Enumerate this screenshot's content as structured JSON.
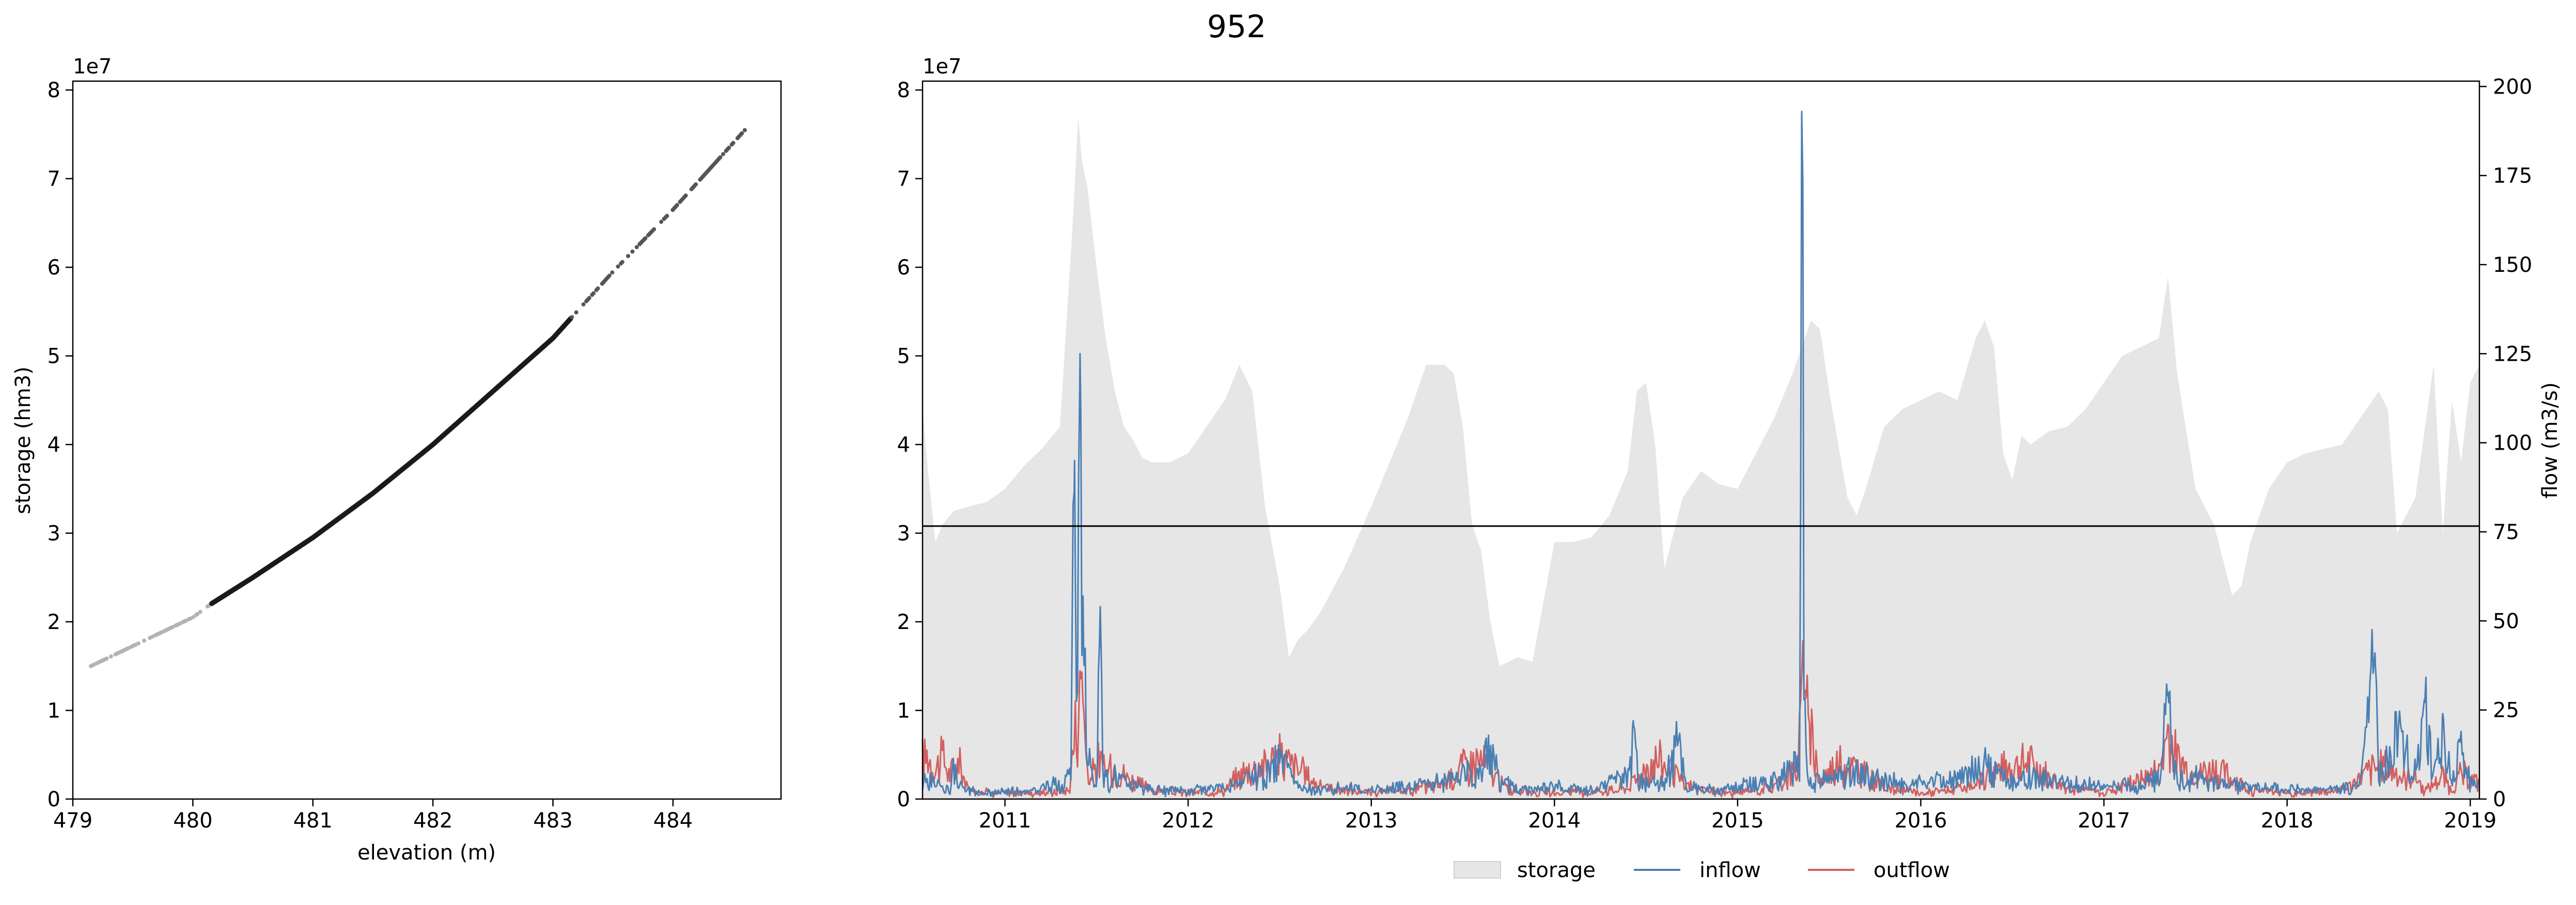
{
  "figure_title": "952",
  "colors": {
    "storage_fill": "#e6e6e6",
    "inflow": "#4a7fb3",
    "outflow": "#d35f5f",
    "curve_dark": "#1a1a1a",
    "curve_light": "#b3b3b3",
    "axis": "#000000"
  },
  "chart_data": [
    {
      "type": "scatter",
      "title": "",
      "xlabel": "elevation (m)",
      "ylabel": "storage (hm3)",
      "y_offset_label": "1e7",
      "xlim": [
        479.0,
        484.9
      ],
      "ylim": [
        0,
        8.1
      ],
      "xticks": [
        479,
        480,
        481,
        482,
        483,
        484
      ],
      "yticks": [
        0,
        1,
        2,
        3,
        4,
        5,
        6,
        7,
        8
      ],
      "curve": {
        "x": [
          479.15,
          480.0,
          480.15,
          480.5,
          481.0,
          481.5,
          482.0,
          482.5,
          483.0,
          483.5,
          484.0,
          484.6
        ],
        "y": [
          1.5,
          2.05,
          2.2,
          2.5,
          2.95,
          3.45,
          4.0,
          4.6,
          5.2,
          5.95,
          6.65,
          7.55
        ],
        "dense_range_x": [
          480.15,
          483.15
        ]
      }
    },
    {
      "type": "area+line",
      "title": "",
      "xlabel": "",
      "ylabel_left": "",
      "ylabel_right": "flow (m3/s)",
      "y_offset_label": "1e7",
      "xlim": [
        2010.55,
        2019.05
      ],
      "ylim_left": [
        0,
        8.1
      ],
      "ylim_right": [
        0,
        201.5
      ],
      "xticks": [
        2011,
        2012,
        2013,
        2014,
        2015,
        2016,
        2017,
        2018,
        2019
      ],
      "xtick_labels": [
        "2011",
        "2012",
        "2013",
        "2014",
        "2015",
        "2016",
        "2017",
        "2018",
        "2019"
      ],
      "yticks_left": [
        0,
        1,
        2,
        3,
        4,
        5,
        6,
        7,
        8
      ],
      "yticks_right": [
        0,
        25,
        50,
        75,
        100,
        125,
        150,
        175,
        200
      ],
      "reference_line_storage": 3.08,
      "legend": {
        "position": "bottom-center",
        "entries": [
          "storage",
          "inflow",
          "outflow"
        ]
      },
      "series": [
        {
          "name": "storage",
          "axis": "left",
          "x": [
            2010.55,
            2010.58,
            2010.62,
            2010.66,
            2010.72,
            2010.8,
            2010.9,
            2011.0,
            2011.1,
            2011.2,
            2011.3,
            2011.37,
            2011.4,
            2011.42,
            2011.45,
            2011.5,
            2011.55,
            2011.6,
            2011.65,
            2011.7,
            2011.75,
            2011.8,
            2011.9,
            2012.0,
            2012.1,
            2012.2,
            2012.28,
            2012.35,
            2012.42,
            2012.5,
            2012.55,
            2012.6,
            2012.65,
            2012.72,
            2012.85,
            2013.0,
            2013.1,
            2013.2,
            2013.3,
            2013.4,
            2013.45,
            2013.5,
            2013.55,
            2013.6,
            2013.65,
            2013.7,
            2013.8,
            2013.88,
            2014.0,
            2014.1,
            2014.2,
            2014.3,
            2014.4,
            2014.45,
            2014.5,
            2014.55,
            2014.6,
            2014.7,
            2014.8,
            2014.9,
            2015.0,
            2015.1,
            2015.2,
            2015.3,
            2015.35,
            2015.4,
            2015.45,
            2015.5,
            2015.6,
            2015.65,
            2015.7,
            2015.8,
            2015.9,
            2016.0,
            2016.1,
            2016.2,
            2016.3,
            2016.35,
            2016.4,
            2016.45,
            2016.5,
            2016.55,
            2016.6,
            2016.7,
            2016.8,
            2016.9,
            2017.0,
            2017.1,
            2017.2,
            2017.3,
            2017.35,
            2017.4,
            2017.5,
            2017.6,
            2017.7,
            2017.75,
            2017.8,
            2017.9,
            2018.0,
            2018.1,
            2018.2,
            2018.3,
            2018.4,
            2018.5,
            2018.55,
            2018.6,
            2018.7,
            2018.8,
            2018.85,
            2018.9,
            2018.95,
            2019.0,
            2019.05
          ],
          "values": [
            4.4,
            3.7,
            2.9,
            3.1,
            3.25,
            3.3,
            3.35,
            3.5,
            3.75,
            3.95,
            4.2,
            6.5,
            7.7,
            7.2,
            6.9,
            6.0,
            5.2,
            4.6,
            4.2,
            4.05,
            3.85,
            3.8,
            3.8,
            3.9,
            4.2,
            4.5,
            4.9,
            4.6,
            3.3,
            2.4,
            1.6,
            1.8,
            1.9,
            2.1,
            2.6,
            3.3,
            3.8,
            4.3,
            4.9,
            4.9,
            4.8,
            4.2,
            3.1,
            2.8,
            2.0,
            1.5,
            1.6,
            1.55,
            2.9,
            2.9,
            2.95,
            3.2,
            3.7,
            4.6,
            4.7,
            4.0,
            2.6,
            3.4,
            3.7,
            3.55,
            3.5,
            3.9,
            4.3,
            4.8,
            5.1,
            5.4,
            5.3,
            4.6,
            3.4,
            3.2,
            3.5,
            4.2,
            4.4,
            4.5,
            4.6,
            4.5,
            5.2,
            5.4,
            5.1,
            3.9,
            3.6,
            4.1,
            4.0,
            4.15,
            4.2,
            4.4,
            4.7,
            5.0,
            5.1,
            5.2,
            5.9,
            4.8,
            3.5,
            3.1,
            2.3,
            2.4,
            2.9,
            3.5,
            3.8,
            3.9,
            3.95,
            4.0,
            4.3,
            4.6,
            4.4,
            3.0,
            3.4,
            4.9,
            3.0,
            4.5,
            3.8,
            4.7,
            4.9
          ]
        },
        {
          "name": "inflow",
          "axis": "right",
          "x": [
            2010.55,
            2010.6,
            2010.65,
            2010.7,
            2010.72,
            2010.75,
            2010.8,
            2010.9,
            2011.0,
            2011.1,
            2011.2,
            2011.3,
            2011.36,
            2011.38,
            2011.39,
            2011.41,
            2011.43,
            2011.45,
            2011.48,
            2011.5,
            2011.52,
            2011.54,
            2011.6,
            2011.7,
            2011.8,
            2012.0,
            2012.2,
            2012.3,
            2012.45,
            2012.5,
            2012.6,
            2012.7,
            2012.8,
            2013.0,
            2013.2,
            2013.4,
            2013.6,
            2013.65,
            2013.7,
            2013.9,
            2014.0,
            2014.2,
            2014.4,
            2014.43,
            2014.46,
            2014.6,
            2014.68,
            2014.72,
            2014.9,
            2015.0,
            2015.1,
            2015.2,
            2015.3,
            2015.34,
            2015.35,
            2015.37,
            2015.4,
            2015.5,
            2015.6,
            2015.7,
            2015.8,
            2016.0,
            2016.2,
            2016.35,
            2016.4,
            2016.5,
            2016.6,
            2016.8,
            2017.0,
            2017.2,
            2017.3,
            2017.35,
            2017.38,
            2017.45,
            2017.5,
            2017.6,
            2017.8,
            2018.0,
            2018.2,
            2018.4,
            2018.48,
            2018.5,
            2018.6,
            2018.7,
            2018.75,
            2018.8,
            2018.85,
            2018.9,
            2018.95,
            2019.0,
            2019.05
          ],
          "values": [
            4,
            7,
            3,
            2,
            9,
            3,
            2,
            1,
            2,
            1,
            3,
            4,
            8,
            95,
            20,
            125,
            40,
            15,
            4,
            3,
            54,
            5,
            6,
            3,
            2,
            2,
            3,
            5,
            8,
            12,
            3,
            2,
            3,
            2,
            3,
            5,
            8,
            20,
            4,
            2,
            3,
            2,
            6,
            22,
            4,
            5,
            19,
            3,
            2,
            3,
            4,
            6,
            8,
            12,
            193,
            10,
            4,
            6,
            8,
            7,
            5,
            4,
            6,
            10,
            8,
            5,
            6,
            4,
            3,
            4,
            6,
            30,
            8,
            4,
            6,
            4,
            3,
            2,
            2,
            3,
            41,
            5,
            20,
            8,
            28,
            5,
            24,
            4,
            15,
            4,
            3
          ]
        },
        {
          "name": "outflow",
          "axis": "right",
          "x": [
            2010.55,
            2010.58,
            2010.62,
            2010.66,
            2010.7,
            2010.75,
            2010.8,
            2011.0,
            2011.2,
            2011.35,
            2011.38,
            2011.41,
            2011.43,
            2011.46,
            2011.5,
            2011.55,
            2011.6,
            2011.65,
            2011.7,
            2011.8,
            2012.0,
            2012.2,
            2012.3,
            2012.4,
            2012.5,
            2012.6,
            2012.7,
            2012.85,
            2013.0,
            2013.2,
            2013.4,
            2013.5,
            2013.6,
            2013.68,
            2013.75,
            2014.0,
            2014.3,
            2014.4,
            2014.5,
            2014.55,
            2014.62,
            2014.7,
            2014.8,
            2015.0,
            2015.2,
            2015.33,
            2015.35,
            2015.37,
            2015.39,
            2015.45,
            2015.55,
            2015.65,
            2015.8,
            2016.0,
            2016.3,
            2016.4,
            2016.5,
            2016.6,
            2016.75,
            2017.0,
            2017.3,
            2017.35,
            2017.4,
            2017.5,
            2017.6,
            2017.7,
            2017.8,
            2018.0,
            2018.3,
            2018.45,
            2018.55,
            2018.65,
            2018.7,
            2018.75,
            2018.8,
            2018.85,
            2018.9,
            2018.95,
            2019.0,
            2019.05
          ],
          "values": [
            12,
            14,
            9,
            13,
            7,
            11,
            2,
            1,
            1,
            2,
            20,
            36,
            25,
            4,
            12,
            8,
            10,
            7,
            5,
            2,
            1,
            2,
            8,
            10,
            13,
            9,
            4,
            2,
            1,
            2,
            4,
            10,
            12,
            6,
            2,
            1,
            2,
            3,
            9,
            12,
            10,
            4,
            2,
            1,
            3,
            10,
            35,
            30,
            22,
            5,
            11,
            9,
            3,
            1,
            3,
            8,
            10,
            11,
            4,
            1,
            8,
            21,
            12,
            7,
            9,
            6,
            2,
            1,
            2,
            8,
            10,
            5,
            7,
            2,
            4,
            7,
            2,
            7,
            6,
            4
          ]
        }
      ]
    }
  ]
}
